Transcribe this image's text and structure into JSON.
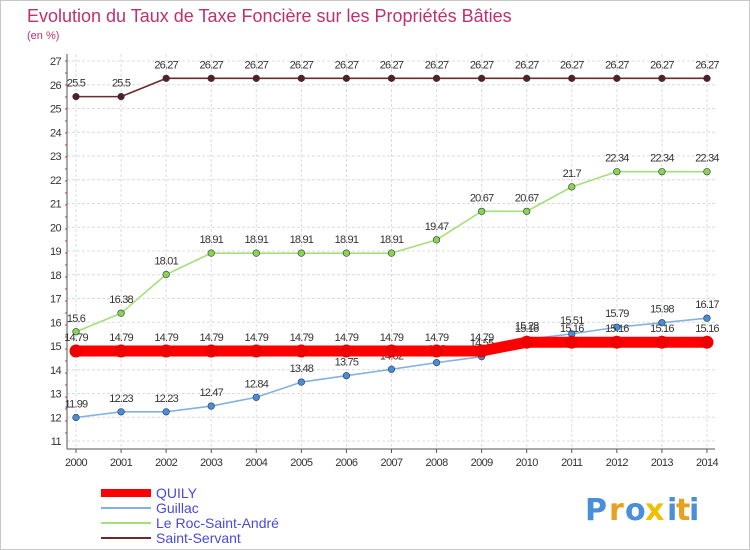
{
  "chart_data": {
    "type": "line",
    "title": "Evolution du Taux de Taxe Foncière sur les Propriétés Bâties",
    "unit_label": "(en %)",
    "categories": [
      "2000",
      "2001",
      "2002",
      "2003",
      "2004",
      "2005",
      "2006",
      "2007",
      "2008",
      "2009",
      "2010",
      "2011",
      "2012",
      "2013",
      "2014"
    ],
    "y_ticks": [
      "11",
      "12",
      "13",
      "14",
      "15",
      "16",
      "17",
      "18",
      "19",
      "20",
      "21",
      "22",
      "23",
      "24",
      "25",
      "26",
      "27"
    ],
    "ylim": [
      11,
      27
    ],
    "grid": true,
    "legend_position": "bottom-left",
    "series": [
      {
        "name": "Saint-Servant",
        "color": "#6b2b2b",
        "point_color": "#5a1e1e",
        "values": [
          25.5,
          25.5,
          26.27,
          26.27,
          26.27,
          26.27,
          26.27,
          26.27,
          26.27,
          26.27,
          26.27,
          26.27,
          26.27,
          26.27,
          26.27
        ],
        "labels": [
          "25.5",
          "25.5",
          "26.27",
          "26.27",
          "26.27",
          "26.27",
          "26.27",
          "26.27",
          "26.27",
          "26.27",
          "26.27",
          "26.27",
          "26.27",
          "26.27",
          "26.27"
        ]
      },
      {
        "name": "Le Roc-Saint-André",
        "color": "#a6de7a",
        "point_color": "#8fd24c",
        "values": [
          15.6,
          16.38,
          18.01,
          18.91,
          18.91,
          18.91,
          18.91,
          18.91,
          19.47,
          20.67,
          20.67,
          21.7,
          22.34,
          22.34,
          22.34
        ],
        "labels": [
          "15.6",
          "16.38",
          "18.01",
          "18.91",
          "18.91",
          "18.91",
          "18.91",
          "18.91",
          "19.47",
          "20.67",
          "20.67",
          "21.7",
          "22.34",
          "22.34",
          "22.34"
        ]
      },
      {
        "name": "Guillac",
        "color": "#84b1e0",
        "point_color": "#4c8cd2",
        "values": [
          11.99,
          12.23,
          12.23,
          12.47,
          12.84,
          13.48,
          13.75,
          14.02,
          14.3,
          14.55,
          15.28,
          15.51,
          15.79,
          15.98,
          16.17
        ],
        "labels": [
          "11.99",
          "12.23",
          "12.23",
          "12.47",
          "12.84",
          "13.48",
          "13.75",
          "14.02",
          "14.3",
          "14.55",
          "15.28",
          "15.51",
          "15.79",
          "15.98",
          "16.17"
        ]
      },
      {
        "name": "QUILY",
        "color": "#ff0000",
        "point_color": "#ee0000",
        "values": [
          14.79,
          14.79,
          14.79,
          14.79,
          14.79,
          14.79,
          14.79,
          14.79,
          14.79,
          14.79,
          15.16,
          15.16,
          15.16,
          15.16,
          15.16
        ],
        "labels": [
          "14.79",
          "14.79",
          "14.79",
          "14.79",
          "14.79",
          "14.79",
          "14.79",
          "14.79",
          "14.79",
          "14.79",
          "15.16",
          "15.16",
          "15.16",
          "15.16",
          "15.16"
        ]
      }
    ],
    "legend": [
      "QUILY",
      "Guillac",
      "Le Roc-Saint-André",
      "Saint-Servant"
    ]
  },
  "brand": {
    "letters": [
      "P",
      "r",
      "o",
      "x",
      "i",
      "t",
      "i"
    ],
    "colors": [
      "#4a90d9",
      "#e8a020",
      "#4a90d9",
      "#f0c000",
      "#4a90d9",
      "#e8a020",
      "#4a90d9"
    ]
  }
}
